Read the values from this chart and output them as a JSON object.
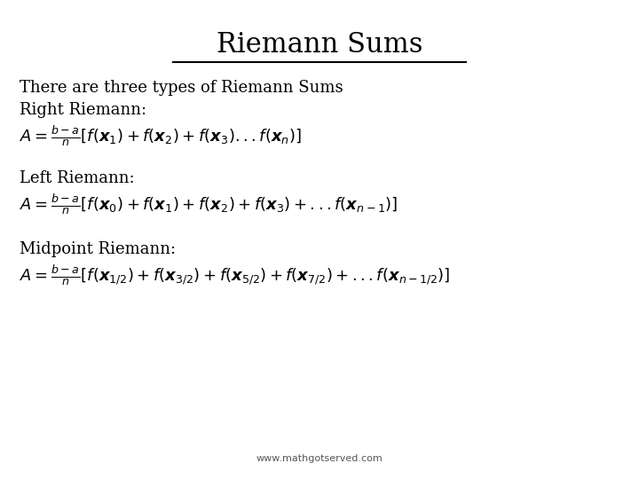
{
  "title": "Riemann Sums",
  "background_color": "#ffffff",
  "text_color": "#000000",
  "footer": "www.mathgotserved.com",
  "line1": "There are three types of Riemann Sums",
  "line2": "Right Riemann:",
  "line3": "Left Riemann:",
  "line4": "Midpoint Riemann:",
  "title_fontsize": 22,
  "text_fontsize": 13,
  "formula_fontsize": 13,
  "footer_fontsize": 8
}
